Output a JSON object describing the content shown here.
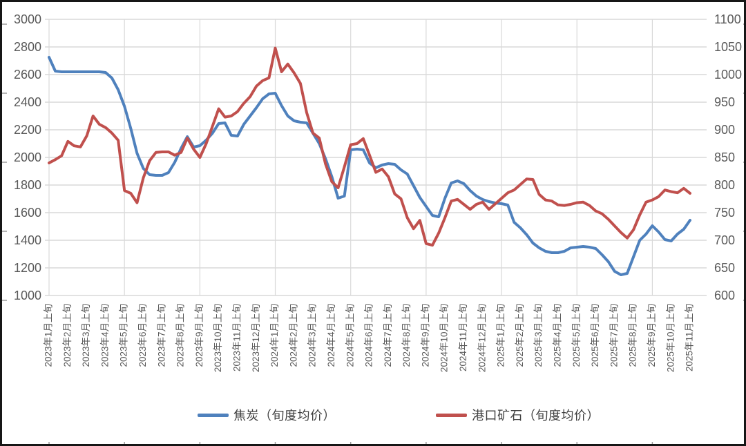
{
  "chart": {
    "legend": [
      {
        "label": "焦炭（旬度均价）",
        "color": "#4F81BD"
      },
      {
        "label": "港口矿石（旬度均价）",
        "color": "#C0504D"
      }
    ],
    "colors": {
      "grid": "#D9D9D9",
      "axis_text": "#595959",
      "frame_border": "#161616",
      "edge_tick": "#9a9a9a"
    }
  },
  "chart_data": {
    "type": "line",
    "title": "",
    "xlabel": "",
    "ylabel_left": "",
    "ylabel_right": "",
    "x_unit": "ten-day period (旬): 上旬/中旬/下旬, 3 points per labeled month",
    "points_per_month": 3,
    "grid": {
      "horizontal": true,
      "vertical_every_months": 4
    },
    "legend_position": "bottom",
    "left_axis": {
      "range": [
        1000,
        3000
      ],
      "ticks": [
        3000,
        2800,
        2600,
        2400,
        2200,
        2000,
        1800,
        1600,
        1400,
        1200,
        1000
      ]
    },
    "right_axis": {
      "range": [
        600,
        1100
      ],
      "ticks": [
        1100,
        1050,
        1000,
        950,
        900,
        850,
        800,
        750,
        700,
        650,
        600
      ]
    },
    "categories": [
      "2023年1月上旬",
      "2023年2月上旬",
      "2023年3月上旬",
      "2023年4月上旬",
      "2023年5月上旬",
      "2023年6月上旬",
      "2023年7月上旬",
      "2023年8月上旬",
      "2023年9月上旬",
      "2023年10月上旬",
      "2023年11月上旬",
      "2023年12月上旬",
      "2024年1月上旬",
      "2024年2月上旬",
      "2024年3月上旬",
      "2024年4月上旬",
      "2024年5月上旬",
      "2024年6月上旬",
      "2024年7月上旬",
      "2024年8月上旬",
      "2024年9月上旬",
      "2024年10月上旬",
      "2024年11月上旬",
      "2024年12月上旬",
      "2025年1月上旬",
      "2025年2月上旬",
      "2025年3月上旬",
      "2025年4月上旬",
      "2025年5月上旬",
      "2025年6月上旬",
      "2025年7月上旬",
      "2025年8月上旬",
      "2025年9月上旬",
      "2025年10月上旬",
      "2025年11月上旬"
    ],
    "series": [
      {
        "name": "焦炭（旬度均价）",
        "axis": "left",
        "color": "#4F81BD",
        "values": [
          2725,
          2625,
          2620,
          2620,
          2620,
          2620,
          2620,
          2620,
          2620,
          2615,
          2575,
          2490,
          2370,
          2210,
          2030,
          1920,
          1875,
          1870,
          1870,
          1890,
          1965,
          2065,
          2150,
          2075,
          2085,
          2125,
          2175,
          2245,
          2250,
          2160,
          2155,
          2240,
          2300,
          2360,
          2425,
          2460,
          2465,
          2375,
          2300,
          2265,
          2255,
          2250,
          2175,
          2100,
          1990,
          1860,
          1705,
          1720,
          2055,
          2060,
          2055,
          1960,
          1925,
          1945,
          1955,
          1950,
          1910,
          1880,
          1795,
          1710,
          1645,
          1580,
          1570,
          1705,
          1815,
          1830,
          1810,
          1760,
          1720,
          1695,
          1680,
          1670,
          1665,
          1655,
          1530,
          1490,
          1440,
          1380,
          1345,
          1320,
          1310,
          1310,
          1320,
          1345,
          1350,
          1355,
          1350,
          1340,
          1295,
          1245,
          1175,
          1150,
          1160,
          1280,
          1400,
          1445,
          1505,
          1460,
          1405,
          1395,
          1445,
          1480,
          1545
        ]
      },
      {
        "name": "港口矿石（旬度均价）",
        "axis": "right",
        "color": "#C0504D",
        "values": [
          840,
          846,
          853,
          879,
          871,
          869,
          889,
          925,
          910,
          904,
          894,
          881,
          790,
          785,
          768,
          813,
          844,
          859,
          860,
          860,
          854,
          859,
          885,
          865,
          850,
          875,
          906,
          938,
          923,
          925,
          933,
          948,
          960,
          979,
          989,
          994,
          1048,
          1005,
          1019,
          1003,
          984,
          931,
          894,
          885,
          838,
          806,
          795,
          833,
          873,
          875,
          884,
          854,
          823,
          829,
          815,
          784,
          775,
          741,
          721,
          736,
          694,
          691,
          713,
          741,
          771,
          774,
          765,
          756,
          765,
          769,
          756,
          766,
          776,
          786,
          791,
          801,
          811,
          810,
          783,
          773,
          771,
          764,
          763,
          765,
          768,
          769,
          763,
          753,
          748,
          738,
          726,
          714,
          704,
          719,
          746,
          769,
          773,
          779,
          791,
          788,
          786,
          794,
          785
        ]
      }
    ]
  }
}
